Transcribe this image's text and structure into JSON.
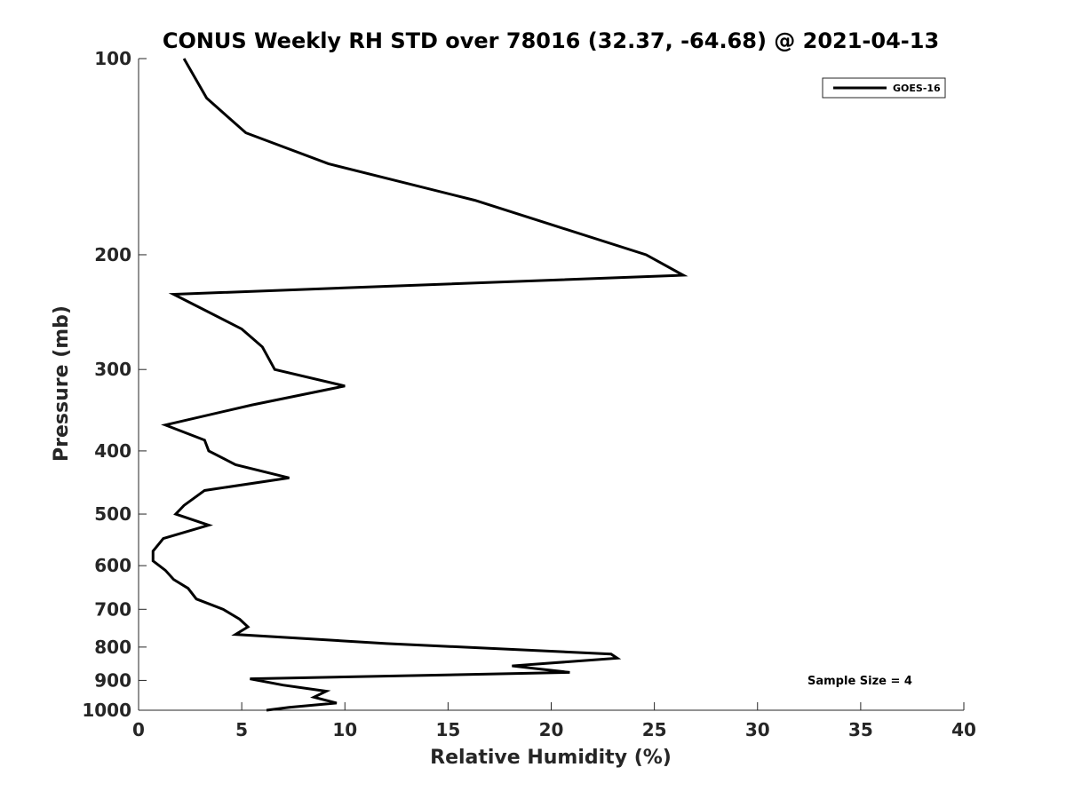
{
  "chart_data": {
    "type": "line",
    "title": "CONUS Weekly RH STD over 78016 (32.37, -64.68) @ 2021-04-13",
    "xlabel": "Relative Humidity (%)",
    "ylabel": "Pressure (mb)",
    "xlim": [
      0,
      40
    ],
    "ylim": [
      100,
      1000
    ],
    "yscale": "log",
    "y_reversed": true,
    "xticks": [
      0,
      5,
      10,
      15,
      20,
      25,
      30,
      35,
      40
    ],
    "yticks": [
      100,
      200,
      300,
      400,
      500,
      600,
      700,
      800,
      900,
      1000
    ],
    "grid": false,
    "legend_position": "top-right",
    "annotation": "Sample Size = 4",
    "series": [
      {
        "name": "GOES-16",
        "color": "#000000",
        "x": [
          2.2,
          3.3,
          5.2,
          9.2,
          16.3,
          24.6,
          26.4,
          1.7,
          5.0,
          6.0,
          6.6,
          10.0,
          5.5,
          1.3,
          3.2,
          3.4,
          4.7,
          7.3,
          3.2,
          2.2,
          1.8,
          3.4,
          1.2,
          0.7,
          0.7,
          1.3,
          1.7,
          2.4,
          2.8,
          4.1,
          4.9,
          5.3,
          4.7,
          12.0,
          22.9,
          23.2,
          18.1,
          20.9,
          5.4,
          7.0,
          9.1,
          8.5,
          9.6,
          7.3,
          6.2
        ],
        "y": [
          100,
          115,
          130,
          145,
          165,
          200,
          215,
          230,
          260,
          277,
          300,
          318,
          340,
          365,
          385,
          400,
          420,
          440,
          460,
          485,
          500,
          520,
          545,
          570,
          590,
          610,
          630,
          650,
          675,
          700,
          725,
          745,
          765,
          790,
          820,
          832,
          855,
          875,
          895,
          915,
          935,
          955,
          975,
          990,
          1000
        ]
      }
    ]
  }
}
